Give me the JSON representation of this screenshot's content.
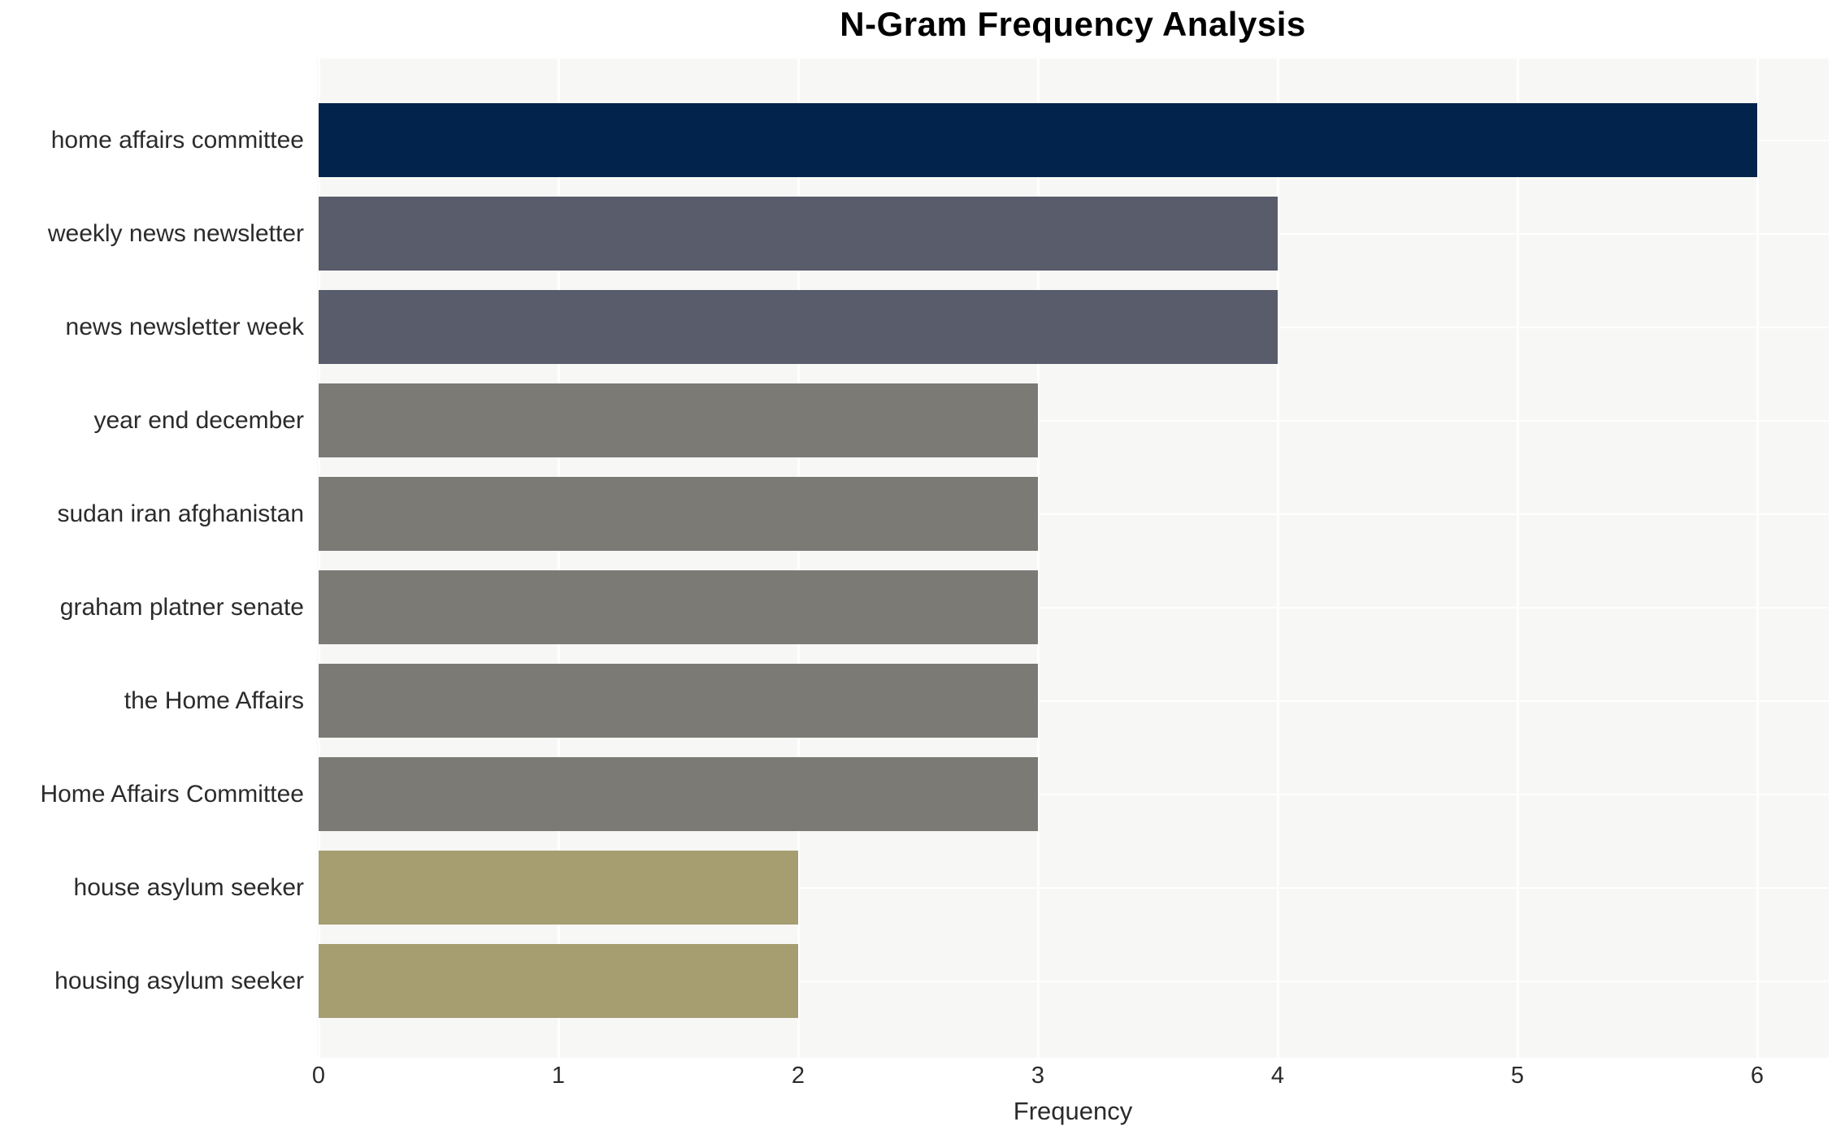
{
  "chart_data": {
    "type": "bar",
    "orientation": "horizontal",
    "title": "N-Gram Frequency Analysis",
    "xlabel": "Frequency",
    "ylabel": "",
    "categories": [
      "home affairs committee",
      "weekly news newsletter",
      "news newsletter week",
      "year end december",
      "sudan iran afghanistan",
      "graham platner senate",
      "the Home Affairs",
      "Home Affairs Committee",
      "house asylum seeker",
      "housing asylum seeker"
    ],
    "values": [
      6,
      4,
      4,
      3,
      3,
      3,
      3,
      3,
      2,
      2
    ],
    "bar_colors": [
      "#02234c",
      "#585c6b",
      "#585c6b",
      "#7b7a75",
      "#7b7a75",
      "#7b7a75",
      "#7b7a75",
      "#7b7a75",
      "#a69d71",
      "#a69d71"
    ],
    "xticks": [
      0,
      1,
      2,
      3,
      4,
      5,
      6
    ],
    "xlim": [
      0,
      6.3
    ],
    "grid": true,
    "legend": false,
    "plot_background": "#f7f7f6",
    "grid_color": "#ffffff",
    "title_color": "#000000",
    "text_color": "#2b2b2b"
  }
}
